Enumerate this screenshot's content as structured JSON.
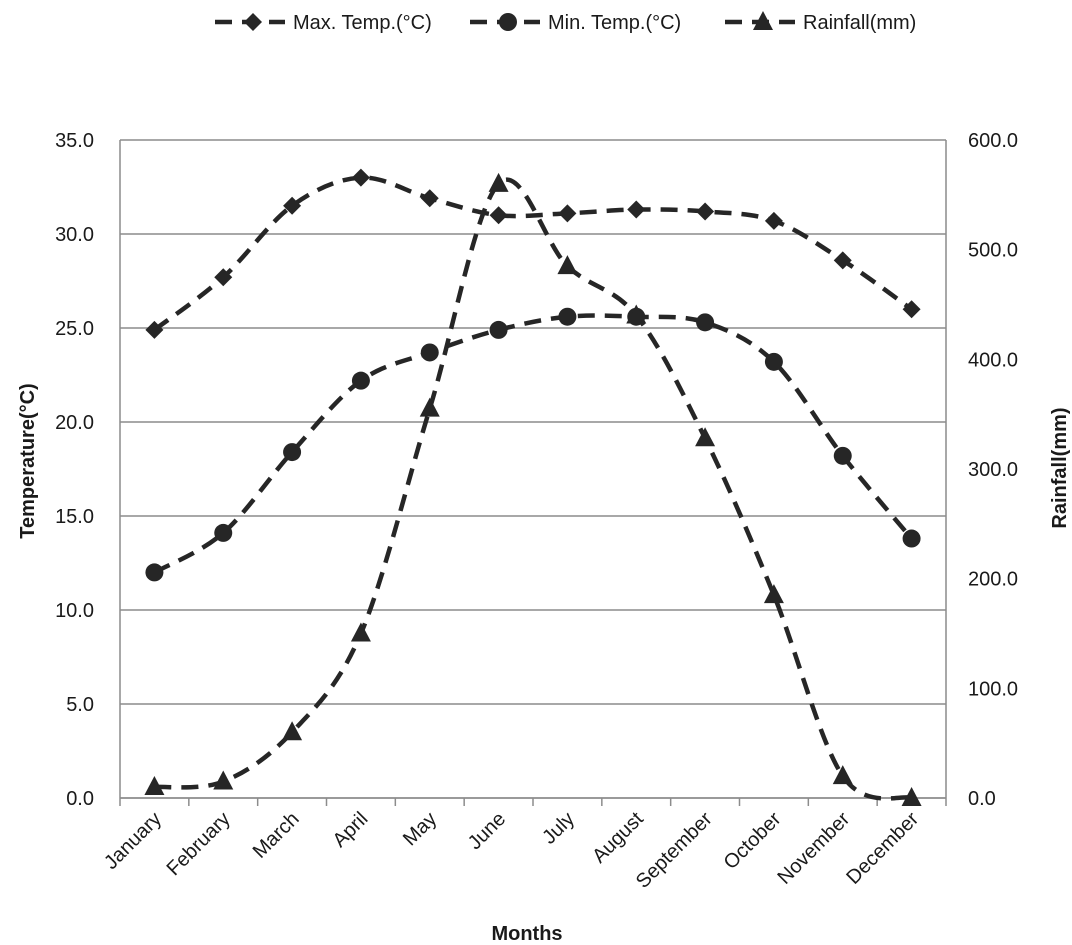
{
  "chart_data": {
    "type": "line",
    "xlabel": "Months",
    "ylabel": "Temperature(°C)",
    "y2label": "Rainfall(mm)",
    "categories": [
      "January",
      "February",
      "March",
      "April",
      "May",
      "June",
      "July",
      "August",
      "September",
      "October",
      "November",
      "December"
    ],
    "ylim": [
      0,
      35
    ],
    "y_ticks": [
      "0.0",
      "5.0",
      "10.0",
      "15.0",
      "20.0",
      "25.0",
      "30.0",
      "35.0"
    ],
    "y2lim": [
      0,
      600
    ],
    "y2_ticks": [
      "0.0",
      "100.0",
      "200.0",
      "300.0",
      "400.0",
      "500.0",
      "600.0"
    ],
    "grid": true,
    "legend_position": "top",
    "series": [
      {
        "name": "Max. Temp.(°C)",
        "axis": "left",
        "marker": "diamond",
        "values": [
          24.9,
          27.7,
          31.5,
          33.0,
          31.9,
          31.0,
          31.1,
          31.3,
          31.2,
          30.7,
          28.6,
          26.0
        ]
      },
      {
        "name": "Min. Temp.(°C)",
        "axis": "left",
        "marker": "circle",
        "values": [
          12.0,
          14.1,
          18.4,
          22.2,
          23.7,
          24.9,
          25.6,
          25.6,
          25.3,
          23.2,
          18.2,
          13.8
        ]
      },
      {
        "name": "Rainfall(mm)",
        "axis": "right",
        "marker": "triangle",
        "values": [
          10,
          15,
          60,
          150,
          355,
          560,
          485,
          440,
          328,
          185,
          20,
          0
        ]
      }
    ],
    "colors": {
      "series": "#262626",
      "grid": "#8c8c8c",
      "text": "#1a1a1a"
    }
  }
}
